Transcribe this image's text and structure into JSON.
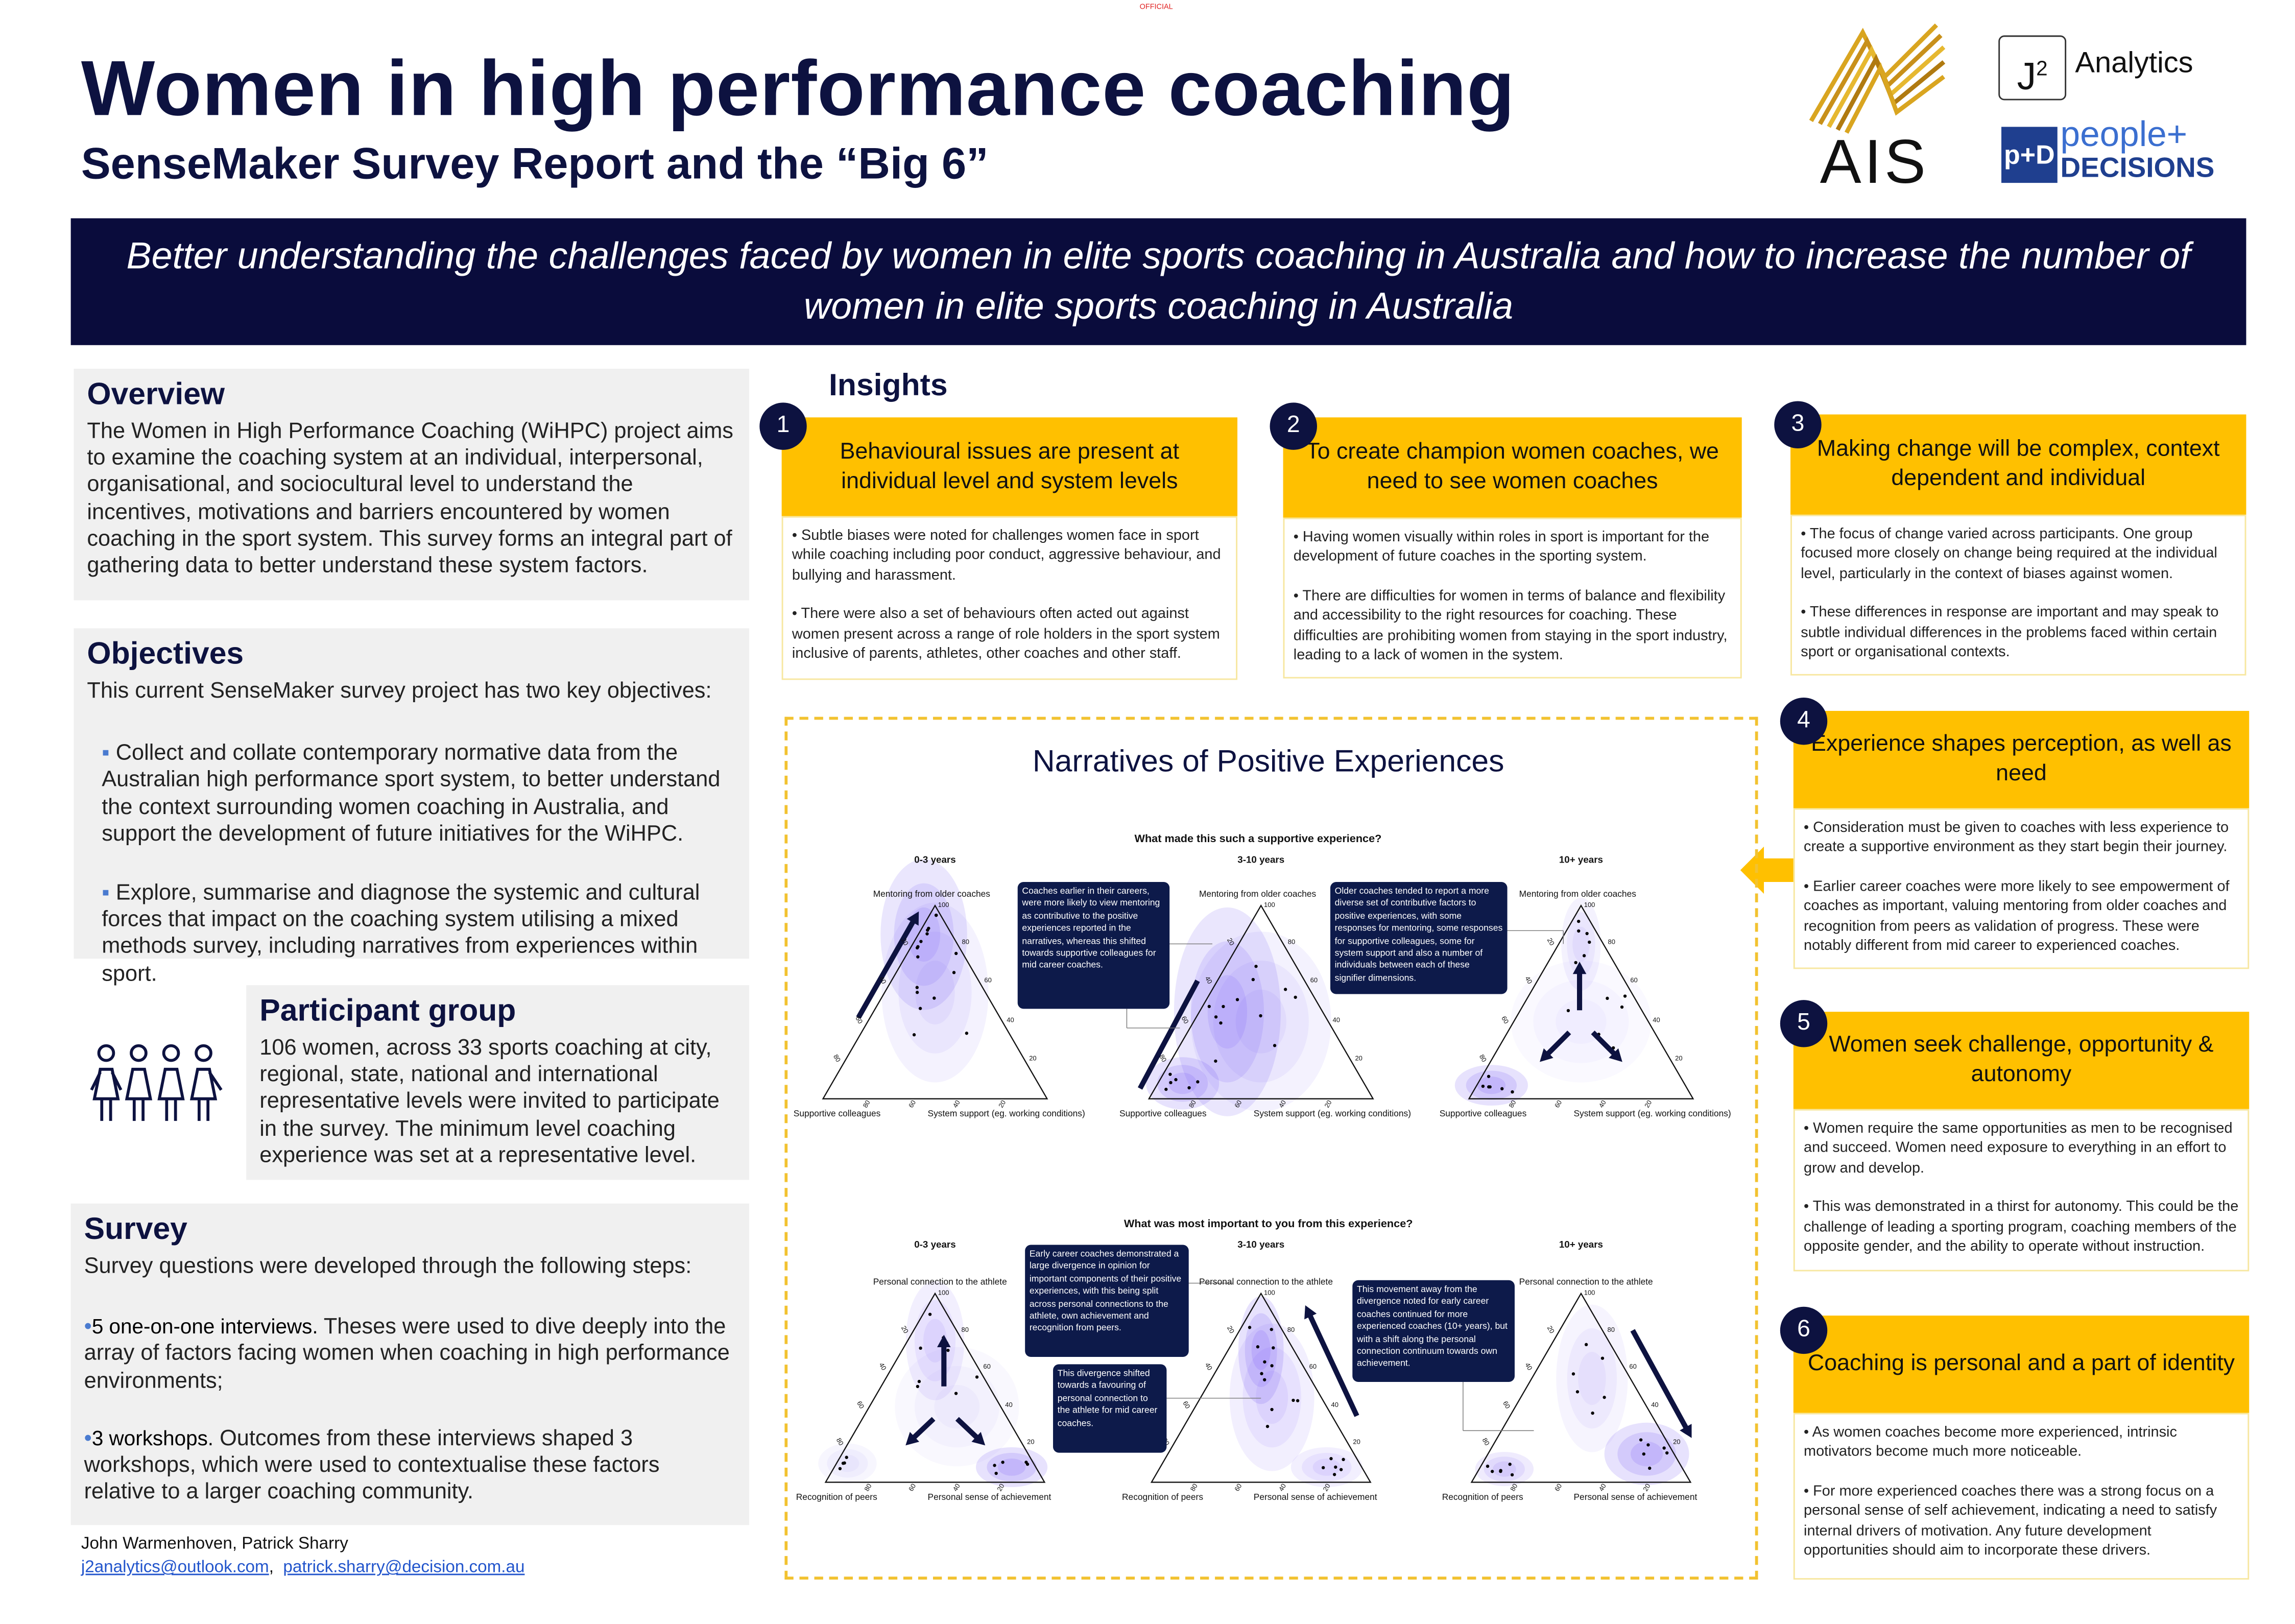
{
  "official": "OFFICIAL",
  "header": {
    "title": "Women in high performance coaching",
    "subtitle": "SenseMaker Survey Report and the “Big 6”",
    "logos": {
      "ais": "AIS",
      "j2": "J",
      "j2_sup": "2",
      "j2_text": "Analytics",
      "pd_top": "people+",
      "pd_bottom": "DECISIONS"
    }
  },
  "banner": "Better understanding the challenges faced by women in elite sports coaching in Australia and how to increase the number of women in elite sports coaching in Australia",
  "overview": {
    "heading": "Overview",
    "text": "The Women in High Performance Coaching (WiHPC) project aims to examine the coaching system at an individual, interpersonal, organisational, and sociocultural level to understand the incentives, motivations and barriers encountered by women coaching in the sport system. This survey forms an integral part of gathering data to better understand these system factors."
  },
  "objectives": {
    "heading": "Objectives",
    "intro": "This current SenseMaker survey project has two key objectives:",
    "items": [
      "Collect and collate contemporary normative data from the Australian high performance sport system, to better understand the context surrounding women coaching in Australia, and support the development of future initiatives for the WiHPC.",
      "Explore, summarise and diagnose the systemic and cultural forces that impact on the coaching system utilising a mixed methods survey, including narratives from experiences within sport."
    ]
  },
  "participants": {
    "heading": "Participant group",
    "text": "106 women, across 33 sports coaching at city, regional, state, national and international representative levels were invited to participate in the survey. The minimum level coaching experience was set at a representative level."
  },
  "survey": {
    "heading": "Survey",
    "intro": "Survey questions were developed through the following steps:",
    "items": [
      {
        "bold": "5 one-on-one interviews.",
        "text": " Theses were used to dive deeply into the array of factors facing women when coaching in high performance environments;"
      },
      {
        "bold": "3 workshops.",
        "text": " Outcomes from these interviews shaped 3 workshops, which were used to contextualise these factors relative to a larger coaching community."
      }
    ]
  },
  "authors": {
    "names": "John Warmenhoven, Patrick Sharry",
    "email1": "j2analytics@outlook.com",
    "sep": ",",
    "email2": "patrick.sharry@decision.com.au"
  },
  "insights": {
    "heading": "Insights",
    "cards": [
      {
        "num": "1",
        "title": "Behavioural issues are present at individual level and system levels",
        "bullets": [
          "• Subtle biases were noted for challenges women face in sport while coaching including poor conduct, aggressive behaviour, and bullying and harassment.",
          "• There were also a set of behaviours often acted out against women present across a range of role holders in the sport system inclusive of parents, athletes, other coaches and other staff."
        ]
      },
      {
        "num": "2",
        "title": "To create champion women coaches, we need to see women coaches",
        "bullets": [
          "• Having women visually within roles in sport is important for the development of future coaches in the sporting system.",
          "• There are difficulties for women in terms of balance and flexibility and accessibility to the right resources for coaching. These difficulties are prohibiting women from staying in the sport industry, leading to a lack of women in the system."
        ]
      },
      {
        "num": "3",
        "title": "Making change will be complex, context dependent and individual",
        "bullets": [
          "• The focus of change varied across participants. One group focused more closely on change being required at the individual level, particularly in the context of biases against women.",
          "• These differences in response are important and may speak to subtle individual differences in the problems faced within certain sport or organisational contexts."
        ]
      },
      {
        "num": "4",
        "title": "Experience shapes perception, as well as need",
        "bullets": [
          "• Consideration must be given to coaches with less experience to create a supportive environment as they start begin their journey.",
          "• Earlier career coaches were more likely to see empowerment of coaches as important, valuing mentoring from older coaches and recognition from peers as validation of progress. These were notably different from mid career to experienced coaches."
        ]
      },
      {
        "num": "5",
        "title": "Women seek challenge, opportunity & autonomy",
        "bullets": [
          "• Women require the same opportunities as men to be recognised and succeed. Women need exposure to everything in an effort to grow and develop.",
          "• This was demonstrated in a thirst for autonomy. This could be the challenge of leading a sporting program, coaching members of the opposite gender, and the ability to operate without instruction."
        ]
      },
      {
        "num": "6",
        "title": "Coaching is personal and a part of identity",
        "bullets": [
          "• As women coaches become more experienced, intrinsic motivators become much more noticeable.",
          "• For more experienced coaches there was a strong focus on a personal sense of self achievement, indicating a need to satisfy internal drivers of motivation. Any future development opportunities should aim to incorporate these drivers."
        ]
      }
    ]
  },
  "narratives": {
    "title": "Narratives of Positive Experiences",
    "groups": [
      "0-3 years",
      "3-10 years",
      "10+ years"
    ],
    "ticks": [
      "20",
      "40",
      "60",
      "80",
      "100"
    ],
    "top": {
      "question": "What made this such a supportive experience?",
      "apex_label": "Mentoring from older coaches",
      "left_label": "Supportive colleagues",
      "right_label": "System support (eg. working conditions)",
      "callouts": [
        "Coaches earlier in their careers, were more likely to view mentoring as contributive to the positive experiences reported in the narratives, whereas this shifted towards supportive colleagues for mid career coaches.",
        "Older coaches tended to report a more diverse set of contributive factors to positive experiences, with some responses for mentoring, some responses for supportive colleagues, some for system support and also a number of individuals between each of these signifier dimensions."
      ]
    },
    "bottom": {
      "question": "What was most important to you from this experience?",
      "apex_label": "Personal connection to the athlete",
      "left_label": "Recognition of peers",
      "right_label": "Personal sense of achievement",
      "callouts": [
        "Early career coaches demonstrated a large divergence in opinion for important components of their positive experiences, with this being split across personal connections to the athlete, own achievement and recognition from peers.",
        "This divergence shifted towards a favouring of personal connection to the athlete for mid career coaches.",
        "This movement away from the divergence noted for early career coaches continued for more experienced coaches (10+ years), but with a shift along the personal connection continuum towards own achievement."
      ]
    }
  },
  "colors": {
    "navy": "#0d1240",
    "banner": "#0a0c3c",
    "accent_yellow": "#ffc000",
    "panel_grey": "#f0f0f0",
    "density_purple": "#6a4cf0"
  }
}
